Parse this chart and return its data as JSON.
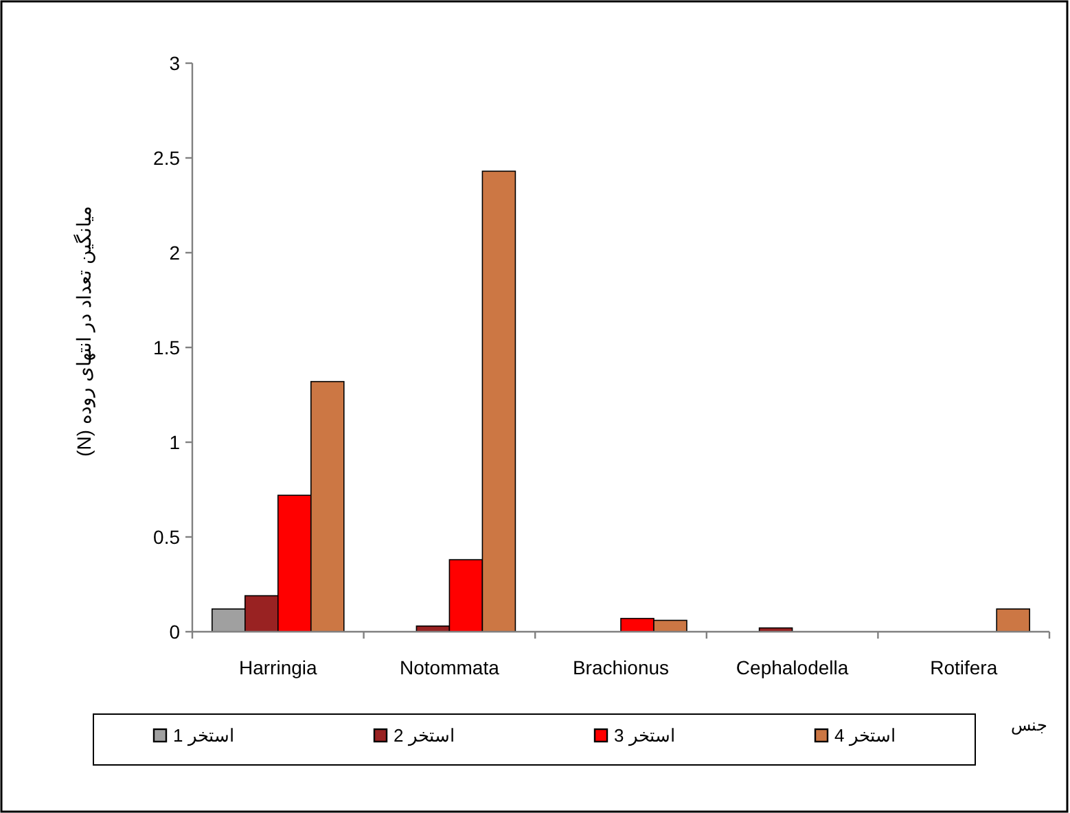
{
  "chart_data": {
    "type": "bar",
    "xlabel": "جنس",
    "ylabel": "میانگین تعداد در انتهای روده (N)",
    "categories": [
      "Harringia",
      "Notommata",
      "Brachionus",
      "Cephalodella",
      "Rotifera"
    ],
    "series": [
      {
        "name": "استخر 1",
        "color": "#a0a0a0",
        "values": [
          0.12,
          0,
          0,
          0,
          0
        ]
      },
      {
        "name": "استخر 2",
        "color": "#992222",
        "values": [
          0.19,
          0.03,
          0,
          0.02,
          0
        ]
      },
      {
        "name": "استخر 3",
        "color": "#ff0000",
        "values": [
          0.72,
          0.38,
          0.07,
          0,
          0
        ]
      },
      {
        "name": "استخر 4",
        "color": "#cc7744",
        "values": [
          1.32,
          2.43,
          0.06,
          0,
          0.12
        ]
      }
    ],
    "ylim": [
      0,
      3
    ],
    "yticks": [
      0,
      0.5,
      1,
      1.5,
      2,
      2.5,
      3
    ],
    "grid": false,
    "legend": "bottom"
  }
}
